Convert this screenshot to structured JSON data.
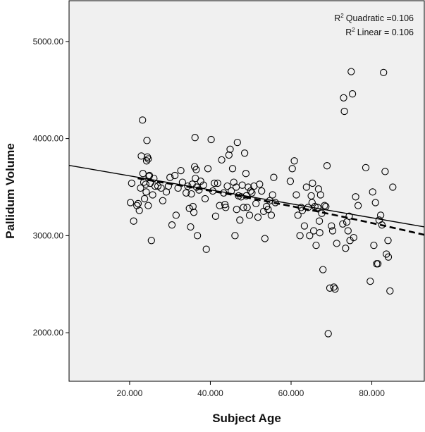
{
  "chart_data": {
    "type": "scatter",
    "xlabel": "Subject Age",
    "ylabel": "Pallidum Volume",
    "xlim": [
      5,
      93
    ],
    "ylim": [
      1500,
      5420
    ],
    "x_ticks": [
      20,
      40,
      60,
      80
    ],
    "x_tick_labels": [
      "20.000",
      "40.000",
      "60.000",
      "80.000"
    ],
    "y_ticks": [
      2000,
      3000,
      4000,
      5000
    ],
    "y_tick_labels": [
      "2000.00",
      "3000.00",
      "4000.00",
      "5000.00"
    ],
    "grid": false,
    "plot_background": "#f0f0f0",
    "marker": "open-circle",
    "legend": {
      "placement": "top-right",
      "quadratic_label": "Quadratic =0.106",
      "linear_label": "Linear = 0.106",
      "r_symbol": "R",
      "superscript": "2"
    },
    "fit_lines": {
      "linear": {
        "style": "solid",
        "intercept": 3760,
        "slope": -7.2
      },
      "quadratic": {
        "style": "dashed",
        "a": 3730,
        "b": -5.9,
        "c": -0.02
      }
    },
    "points": [
      [
        20.5,
        3540
      ],
      [
        20.2,
        3340
      ],
      [
        21.0,
        3150
      ],
      [
        21.8,
        3310
      ],
      [
        22.1,
        3330
      ],
      [
        22.4,
        3260
      ],
      [
        22.7,
        3490
      ],
      [
        22.9,
        3820
      ],
      [
        23.2,
        4190
      ],
      [
        23.3,
        3640
      ],
      [
        23.5,
        3550
      ],
      [
        23.7,
        3380
      ],
      [
        24.0,
        3530
      ],
      [
        24.2,
        3770
      ],
      [
        24.3,
        3980
      ],
      [
        24.4,
        3810
      ],
      [
        24.6,
        3790
      ],
      [
        24.8,
        3610
      ],
      [
        24.9,
        3620
      ],
      [
        25.1,
        3540
      ],
      [
        24.1,
        3450
      ],
      [
        24.6,
        3310
      ],
      [
        25.4,
        2950
      ],
      [
        25.7,
        3420
      ],
      [
        26.0,
        3590
      ],
      [
        26.3,
        3510
      ],
      [
        27.0,
        3510
      ],
      [
        27.8,
        3490
      ],
      [
        28.2,
        3360
      ],
      [
        29.1,
        3450
      ],
      [
        29.6,
        3510
      ],
      [
        30.0,
        3600
      ],
      [
        30.5,
        3110
      ],
      [
        31.2,
        3620
      ],
      [
        31.5,
        3210
      ],
      [
        32.0,
        3490
      ],
      [
        32.7,
        3670
      ],
      [
        33.1,
        3550
      ],
      [
        34.0,
        3440
      ],
      [
        34.4,
        3510
      ],
      [
        34.8,
        3280
      ],
      [
        35.1,
        3090
      ],
      [
        35.3,
        3430
      ],
      [
        35.5,
        3530
      ],
      [
        35.7,
        3300
      ],
      [
        35.9,
        3240
      ],
      [
        36.1,
        3710
      ],
      [
        36.2,
        4010
      ],
      [
        36.3,
        3590
      ],
      [
        36.5,
        3680
      ],
      [
        36.6,
        3500
      ],
      [
        36.8,
        3000
      ],
      [
        37.2,
        3470
      ],
      [
        37.6,
        3560
      ],
      [
        38.3,
        3520
      ],
      [
        38.7,
        3380
      ],
      [
        39.0,
        2860
      ],
      [
        39.4,
        3690
      ],
      [
        40.2,
        3990
      ],
      [
        40.6,
        3460
      ],
      [
        41.0,
        3540
      ],
      [
        41.3,
        3200
      ],
      [
        41.8,
        3540
      ],
      [
        42.3,
        3310
      ],
      [
        42.8,
        3780
      ],
      [
        43.3,
        3440
      ],
      [
        43.8,
        3290
      ],
      [
        44.2,
        3510
      ],
      [
        44.6,
        3830
      ],
      [
        44.9,
        3890
      ],
      [
        45.2,
        3460
      ],
      [
        45.5,
        3690
      ],
      [
        45.8,
        3550
      ],
      [
        46.1,
        3000
      ],
      [
        46.4,
        3500
      ],
      [
        46.7,
        3960
      ],
      [
        47.0,
        3410
      ],
      [
        47.3,
        3160
      ],
      [
        47.6,
        3400
      ],
      [
        47.9,
        3520
      ],
      [
        48.2,
        3290
      ],
      [
        48.5,
        3850
      ],
      [
        48.8,
        3640
      ],
      [
        49.1,
        3290
      ],
      [
        49.4,
        3500
      ],
      [
        49.7,
        3210
      ],
      [
        50.0,
        3460
      ],
      [
        50.3,
        3440
      ],
      [
        50.8,
        3510
      ],
      [
        51.3,
        3330
      ],
      [
        51.8,
        3190
      ],
      [
        52.2,
        3530
      ],
      [
        52.7,
        3460
      ],
      [
        53.2,
        3250
      ],
      [
        53.5,
        2970
      ],
      [
        53.9,
        3300
      ],
      [
        54.3,
        3270
      ],
      [
        54.7,
        3360
      ],
      [
        55.1,
        3210
      ],
      [
        55.4,
        3420
      ],
      [
        55.7,
        3600
      ],
      [
        56.1,
        3340
      ],
      [
        46.5,
        3270
      ],
      [
        43.6,
        3320
      ],
      [
        48.9,
        3410
      ],
      [
        59.8,
        3560
      ],
      [
        60.3,
        3690
      ],
      [
        60.8,
        3770
      ],
      [
        61.3,
        3420
      ],
      [
        61.7,
        3210
      ],
      [
        62.2,
        3000
      ],
      [
        62.5,
        3290
      ],
      [
        62.8,
        3260
      ],
      [
        63.3,
        3100
      ],
      [
        63.8,
        3500
      ],
      [
        64.2,
        3290
      ],
      [
        64.6,
        3000
      ],
      [
        65.0,
        3410
      ],
      [
        65.3,
        3540
      ],
      [
        65.6,
        3050
      ],
      [
        65.9,
        3300
      ],
      [
        66.2,
        2900
      ],
      [
        66.6,
        3290
      ],
      [
        67.0,
        3150
      ],
      [
        67.3,
        3420
      ],
      [
        67.6,
        3230
      ],
      [
        67.9,
        2650
      ],
      [
        68.3,
        3310
      ],
      [
        68.6,
        3300
      ],
      [
        68.9,
        3720
      ],
      [
        69.2,
        1990
      ],
      [
        69.6,
        2460
      ],
      [
        70.0,
        3100
      ],
      [
        70.3,
        3050
      ],
      [
        70.6,
        2470
      ],
      [
        70.9,
        2450
      ],
      [
        71.3,
        2920
      ],
      [
        72.8,
        3120
      ],
      [
        73.0,
        4420
      ],
      [
        73.2,
        4280
      ],
      [
        73.5,
        2870
      ],
      [
        73.8,
        3140
      ],
      [
        74.1,
        3050
      ],
      [
        74.4,
        3200
      ],
      [
        74.6,
        2950
      ],
      [
        74.9,
        4690
      ],
      [
        75.2,
        4460
      ],
      [
        75.5,
        2980
      ],
      [
        76.0,
        3400
      ],
      [
        76.6,
        3310
      ],
      [
        78.5,
        3700
      ],
      [
        79.6,
        2530
      ],
      [
        80.2,
        3450
      ],
      [
        80.9,
        3340
      ],
      [
        81.2,
        2710
      ],
      [
        81.5,
        2710
      ],
      [
        81.8,
        3160
      ],
      [
        82.2,
        3210
      ],
      [
        82.5,
        3110
      ],
      [
        82.9,
        4680
      ],
      [
        83.3,
        3660
      ],
      [
        83.6,
        2810
      ],
      [
        84.0,
        2950
      ],
      [
        84.5,
        2430
      ],
      [
        85.2,
        3500
      ],
      [
        84.1,
        2780
      ],
      [
        80.5,
        2900
      ],
      [
        66.8,
        3480
      ],
      [
        65.2,
        3340
      ],
      [
        67.1,
        3030
      ]
    ]
  }
}
